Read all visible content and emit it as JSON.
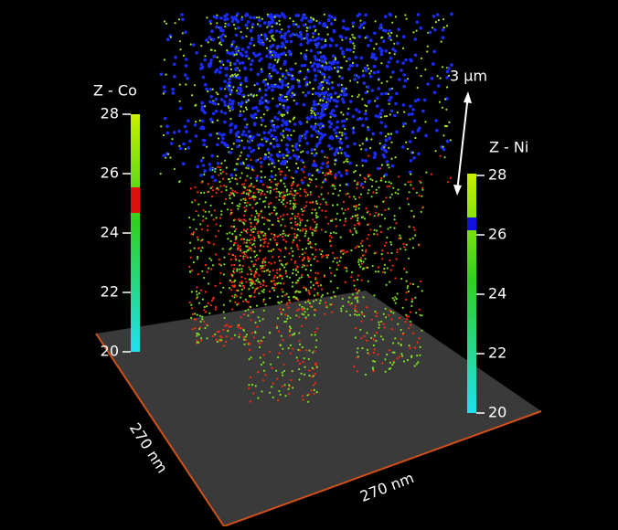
{
  "colorbars": [
    {
      "title": "Z - Co",
      "ticks": [
        28,
        26,
        24,
        22,
        20
      ]
    },
    {
      "title": "Z - Ni",
      "ticks": [
        28,
        26,
        24,
        22,
        20
      ]
    }
  ],
  "scale_bar": "3 μm",
  "axes": {
    "depth": "270 nm",
    "width": "270 nm"
  }
}
